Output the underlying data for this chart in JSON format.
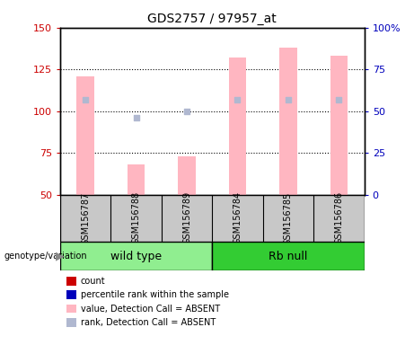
{
  "title": "GDS2757 / 97957_at",
  "samples": [
    "GSM156787",
    "GSM156788",
    "GSM156789",
    "GSM156784",
    "GSM156785",
    "GSM156786"
  ],
  "bar_values": [
    121,
    68,
    73,
    132,
    138,
    133
  ],
  "rank_values": [
    57,
    46,
    50,
    57,
    57,
    57
  ],
  "ylim_left": [
    50,
    150
  ],
  "ylim_right": [
    0,
    100
  ],
  "yticks_left": [
    50,
    75,
    100,
    125,
    150
  ],
  "yticks_right": [
    0,
    25,
    50,
    75,
    100
  ],
  "ytick_labels_right": [
    "0",
    "25",
    "50",
    "75",
    "100%"
  ],
  "bar_color_absent": "#FFB6C1",
  "rank_color_absent": "#B0B8D0",
  "bar_width": 0.35,
  "legend_items": [
    {
      "label": "count",
      "color": "#CC0000"
    },
    {
      "label": "percentile rank within the sample",
      "color": "#0000BB"
    },
    {
      "label": "value, Detection Call = ABSENT",
      "color": "#FFB6C1"
    },
    {
      "label": "rank, Detection Call = ABSENT",
      "color": "#B0B8D0"
    }
  ],
  "left_tick_color": "#CC0000",
  "right_tick_color": "#0000BB",
  "bg_label": "#C8C8C8",
  "wt_color": "#90EE90",
  "rb_color": "#33CC33"
}
